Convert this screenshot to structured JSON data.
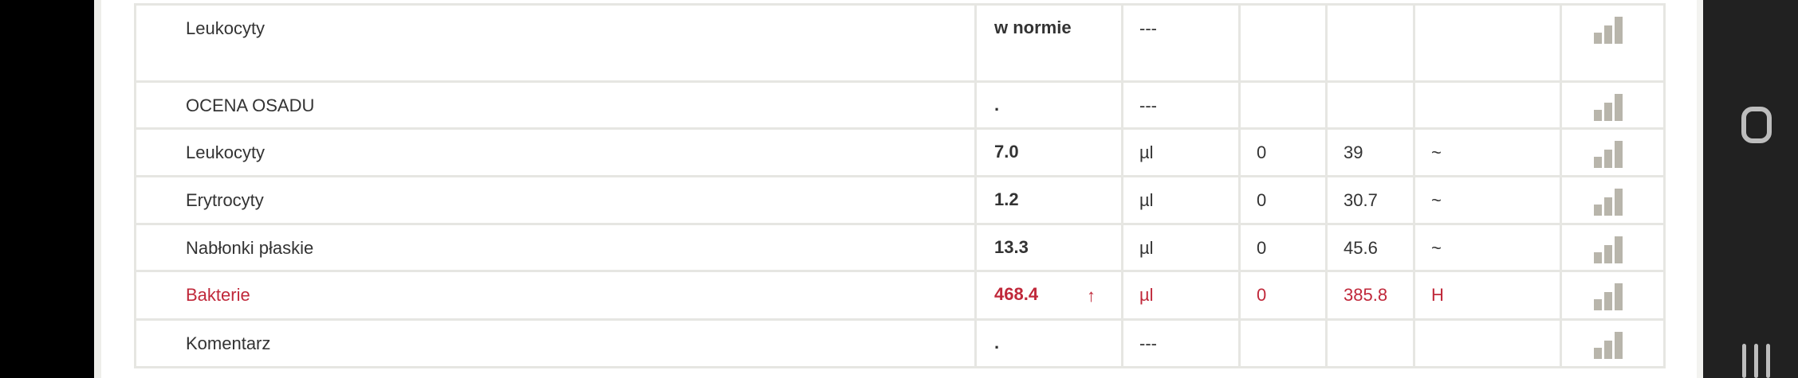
{
  "rows": [
    {
      "name": "Leukocyty",
      "value": "w normie",
      "flag_arrow": "",
      "unit": "---",
      "min": "",
      "max": "",
      "flag": "",
      "abnormal": false
    },
    {
      "name": "OCENA OSADU",
      "value": ".",
      "flag_arrow": "",
      "unit": "---",
      "min": "",
      "max": "",
      "flag": "",
      "abnormal": false
    },
    {
      "name": "Leukocyty",
      "value": "7.0",
      "flag_arrow": "",
      "unit": "µl",
      "min": "0",
      "max": "39",
      "flag": "~",
      "abnormal": false
    },
    {
      "name": "Erytrocyty",
      "value": "1.2",
      "flag_arrow": "",
      "unit": "µl",
      "min": "0",
      "max": "30.7",
      "flag": "~",
      "abnormal": false
    },
    {
      "name": "Nabłonki płaskie",
      "value": "13.3",
      "flag_arrow": "",
      "unit": "µl",
      "min": "0",
      "max": "45.6",
      "flag": "~",
      "abnormal": false
    },
    {
      "name": "Bakterie",
      "value": "468.4",
      "flag_arrow": "↑",
      "unit": "µl",
      "min": "0",
      "max": "385.8",
      "flag": "H",
      "abnormal": true
    },
    {
      "name": "Komentarz",
      "value": ".",
      "flag_arrow": "",
      "unit": "---",
      "min": "",
      "max": "",
      "flag": "",
      "abnormal": false
    }
  ],
  "icons": {
    "chart": "bar-chart-icon",
    "nav_home": "home-icon",
    "nav_recent": "recent-apps-icon"
  },
  "colors": {
    "abnormal": "#c0283a",
    "chart_icon": "#b8b5ab",
    "navbar": "#212121"
  }
}
